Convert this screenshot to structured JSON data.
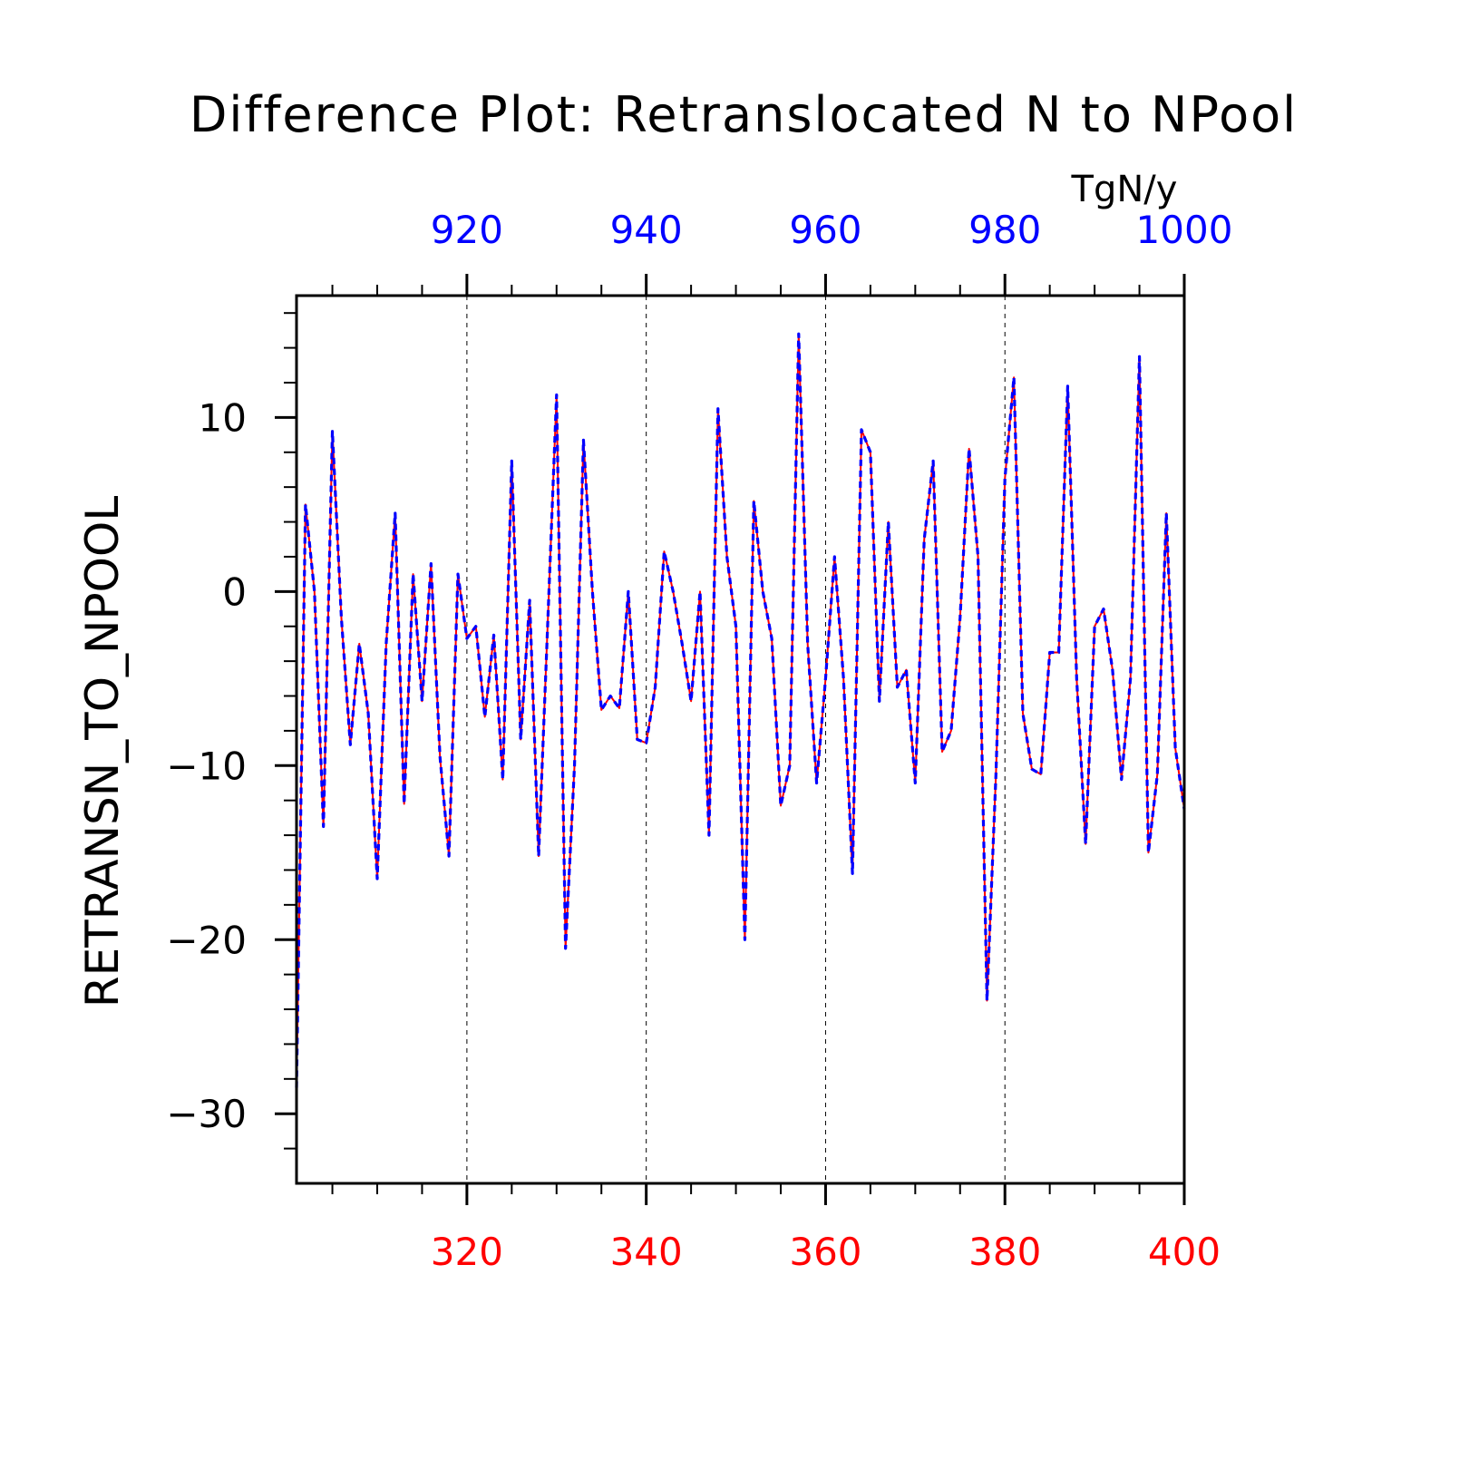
{
  "chart_data": {
    "type": "line",
    "title": "Difference Plot: Retranslocated N to NPool",
    "ylabel": "RETRANSN_TO_NPOOL",
    "units": "TgN/y",
    "xlim": [
      301,
      400
    ],
    "ylim": [
      -34,
      17
    ],
    "x_bottom_ticks": [
      320,
      340,
      360,
      380,
      400
    ],
    "x_top_ticks": [
      920,
      940,
      960,
      980,
      1000
    ],
    "x_top_offset": 600,
    "y_ticks": [
      -30,
      -20,
      -10,
      0,
      10
    ],
    "grid": "vertical-dashed",
    "x": [
      301,
      302,
      303,
      304,
      305,
      306,
      307,
      308,
      309,
      310,
      311,
      312,
      313,
      314,
      315,
      316,
      317,
      318,
      319,
      320,
      321,
      322,
      323,
      324,
      325,
      326,
      327,
      328,
      329,
      330,
      331,
      332,
      333,
      334,
      335,
      336,
      337,
      338,
      339,
      340,
      341,
      342,
      343,
      344,
      345,
      346,
      347,
      348,
      349,
      350,
      351,
      352,
      353,
      354,
      355,
      356,
      357,
      358,
      359,
      360,
      361,
      362,
      363,
      364,
      365,
      366,
      367,
      368,
      369,
      370,
      371,
      372,
      373,
      374,
      375,
      376,
      377,
      378,
      379,
      380,
      381,
      382,
      383,
      384,
      385,
      386,
      387,
      388,
      389,
      390,
      391,
      392,
      393,
      394,
      395,
      396,
      397,
      398,
      399,
      400
    ],
    "series": [
      {
        "color": "#ff0000",
        "dash": "solid",
        "values": [
          -28.5,
          5,
          0,
          -13.5,
          9.2,
          -1.5,
          -8.8,
          -3,
          -7,
          -16.5,
          -3,
          4.5,
          -12.2,
          1,
          -6.3,
          1.6,
          -9.5,
          -15.2,
          1,
          -2.7,
          -2,
          -7.2,
          -2.5,
          -10.8,
          7.5,
          -8.5,
          -0.5,
          -15.2,
          -2,
          11.3,
          -20.5,
          -10,
          8.7,
          0,
          -6.8,
          -6,
          -6.7,
          0,
          -8.5,
          -8.7,
          -5.5,
          2.3,
          0,
          -3,
          -6.3,
          0,
          -14,
          10.5,
          2,
          -2,
          -20,
          5.2,
          0,
          -2.7,
          -12.3,
          -10,
          14.8,
          -3,
          -11,
          -5,
          2,
          -5,
          -16.2,
          9.3,
          8,
          -6.3,
          4,
          -5.5,
          -4.5,
          -11,
          3,
          7.5,
          -9.2,
          -8,
          -1.5,
          8.2,
          2,
          -23.5,
          -10.5,
          6.5,
          12.3,
          -7,
          -10.2,
          -10.5,
          -3.5,
          -3.5,
          11.8,
          -5,
          -14.5,
          -2,
          -1,
          -4.5,
          -10.8,
          -5,
          13.5,
          -15,
          -10.5,
          4.5,
          -9,
          -12.5
        ]
      },
      {
        "color": "#0000ff",
        "dash": "dashed",
        "values": [
          -28.5,
          5,
          0,
          -13.5,
          9.2,
          -1.5,
          -8.8,
          -3,
          -7,
          -16.5,
          -3,
          4.5,
          -12.2,
          1,
          -6.3,
          1.6,
          -9.5,
          -15.2,
          1,
          -2.7,
          -2,
          -7.2,
          -2.5,
          -10.8,
          7.5,
          -8.5,
          -0.5,
          -15.2,
          -2,
          11.3,
          -20.5,
          -10,
          8.7,
          0,
          -6.8,
          -6,
          -6.7,
          0,
          -8.5,
          -8.7,
          -5.5,
          2.3,
          0,
          -3,
          -6.3,
          0,
          -14,
          10.5,
          2,
          -2,
          -20,
          5.2,
          0,
          -2.7,
          -12.3,
          -10,
          14.8,
          -3,
          -11,
          -5,
          2,
          -5,
          -16.2,
          9.3,
          8,
          -6.3,
          4,
          -5.5,
          -4.5,
          -11,
          3,
          7.5,
          -9.2,
          -8,
          -1.5,
          8.2,
          2,
          -23.5,
          -10.5,
          6.5,
          12.3,
          -7,
          -10.2,
          -10.5,
          -3.5,
          -3.5,
          11.8,
          -5,
          -14.5,
          -2,
          -1,
          -4.5,
          -10.8,
          -5,
          13.5,
          -15,
          -10.5,
          4.5,
          -9,
          -12.5
        ]
      }
    ]
  }
}
